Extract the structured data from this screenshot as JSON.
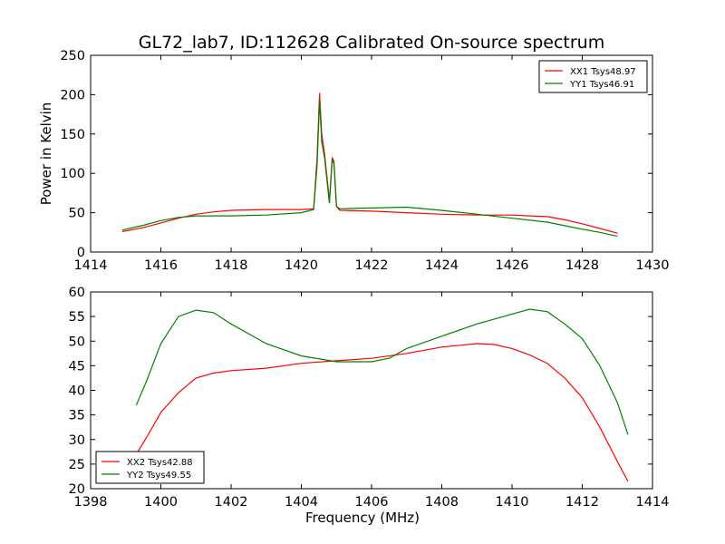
{
  "figure": {
    "title": "GL72_lab7, ID:112628 Calibrated On-source spectrum",
    "colors": {
      "XX": "#ff0000",
      "YY": "#008000",
      "frame": "#000000",
      "background": "#ffffff"
    }
  },
  "chart_data": [
    {
      "type": "line",
      "panel": "top",
      "xlabel": "",
      "ylabel": "Power in Kelvin",
      "xlim": [
        1414,
        1430
      ],
      "ylim": [
        0,
        250
      ],
      "xticks": [
        "1414",
        "1416",
        "1418",
        "1420",
        "1422",
        "1424",
        "1426",
        "1428",
        "1430"
      ],
      "yticks": [
        "0",
        "50",
        "100",
        "150",
        "200",
        "250"
      ],
      "legend_position": "top-right",
      "grid": false,
      "series": [
        {
          "name": "XX1 Tsys48.97",
          "color": "#ff0000",
          "points": [
            [
              1414.9,
              26
            ],
            [
              1415.5,
              31
            ],
            [
              1416,
              37
            ],
            [
              1416.5,
              43
            ],
            [
              1417,
              48
            ],
            [
              1417.5,
              51
            ],
            [
              1418,
              53
            ],
            [
              1419,
              54
            ],
            [
              1420,
              54
            ],
            [
              1420.35,
              55
            ],
            [
              1420.45,
              120
            ],
            [
              1420.52,
              202
            ],
            [
              1420.58,
              150
            ],
            [
              1420.66,
              125
            ],
            [
              1420.72,
              100
            ],
            [
              1420.8,
              65
            ],
            [
              1420.88,
              120
            ],
            [
              1420.93,
              115
            ],
            [
              1421.0,
              58
            ],
            [
              1421.1,
              53
            ],
            [
              1422,
              52
            ],
            [
              1423,
              50
            ],
            [
              1424,
              48
            ],
            [
              1425,
              47
            ],
            [
              1426,
              47
            ],
            [
              1426.5,
              46
            ],
            [
              1427,
              45
            ],
            [
              1427.5,
              41
            ],
            [
              1428,
              36
            ],
            [
              1428.5,
              30
            ],
            [
              1429,
              24
            ]
          ]
        },
        {
          "name": "YY1 Tsys46.91",
          "color": "#008000",
          "points": [
            [
              1414.9,
              28
            ],
            [
              1415.5,
              34
            ],
            [
              1416,
              40
            ],
            [
              1416.5,
              44
            ],
            [
              1417,
              46
            ],
            [
              1418,
              46
            ],
            [
              1419,
              47
            ],
            [
              1420,
              50
            ],
            [
              1420.35,
              54
            ],
            [
              1420.45,
              110
            ],
            [
              1420.52,
              193
            ],
            [
              1420.58,
              140
            ],
            [
              1420.66,
              120
            ],
            [
              1420.72,
              95
            ],
            [
              1420.8,
              62
            ],
            [
              1420.88,
              118
            ],
            [
              1420.93,
              112
            ],
            [
              1421.0,
              58
            ],
            [
              1421.1,
              55
            ],
            [
              1422,
              56
            ],
            [
              1423,
              57
            ],
            [
              1424,
              53
            ],
            [
              1425,
              48
            ],
            [
              1426,
              43
            ],
            [
              1427,
              38
            ],
            [
              1428,
              29
            ],
            [
              1428.5,
              25
            ],
            [
              1429,
              20
            ]
          ]
        }
      ]
    },
    {
      "type": "line",
      "panel": "bottom",
      "xlabel": "Frequency (MHz)",
      "ylabel": "",
      "xlim": [
        1398,
        1414
      ],
      "ylim": [
        20,
        60
      ],
      "xticks": [
        "1398",
        "1400",
        "1402",
        "1404",
        "1406",
        "1408",
        "1410",
        "1412",
        "1414"
      ],
      "yticks": [
        "20",
        "25",
        "30",
        "35",
        "40",
        "45",
        "50",
        "55",
        "60"
      ],
      "legend_position": "bottom-left",
      "grid": false,
      "series": [
        {
          "name": "XX2 Tsys42.88",
          "color": "#ff0000",
          "points": [
            [
              1399.3,
              27
            ],
            [
              1399.6,
              30.5
            ],
            [
              1400,
              35.5
            ],
            [
              1400.5,
              39.5
            ],
            [
              1401,
              42.5
            ],
            [
              1401.5,
              43.5
            ],
            [
              1402,
              44
            ],
            [
              1403,
              44.5
            ],
            [
              1404,
              45.5
            ],
            [
              1405,
              46
            ],
            [
              1406,
              46.5
            ],
            [
              1407,
              47.5
            ],
            [
              1408,
              48.8
            ],
            [
              1409,
              49.5
            ],
            [
              1409.5,
              49.3
            ],
            [
              1410,
              48.5
            ],
            [
              1410.5,
              47.2
            ],
            [
              1411,
              45.5
            ],
            [
              1411.5,
              42.5
            ],
            [
              1412,
              38.5
            ],
            [
              1412.5,
              32.5
            ],
            [
              1413,
              25.5
            ],
            [
              1413.3,
              21.5
            ]
          ]
        },
        {
          "name": "YY2 Tsys49.55",
          "color": "#008000",
          "points": [
            [
              1399.3,
              37
            ],
            [
              1399.6,
              42
            ],
            [
              1400,
              49.5
            ],
            [
              1400.5,
              55
            ],
            [
              1401,
              56.3
            ],
            [
              1401.5,
              55.8
            ],
            [
              1402,
              53.5
            ],
            [
              1402.5,
              51.5
            ],
            [
              1403,
              49.5
            ],
            [
              1404,
              47
            ],
            [
              1405,
              45.8
            ],
            [
              1406,
              45.8
            ],
            [
              1406.5,
              46.5
            ],
            [
              1407,
              48.5
            ],
            [
              1408,
              51
            ],
            [
              1409,
              53.5
            ],
            [
              1410,
              55.5
            ],
            [
              1410.5,
              56.5
            ],
            [
              1411,
              56
            ],
            [
              1411.5,
              53.5
            ],
            [
              1412,
              50.5
            ],
            [
              1412.5,
              45
            ],
            [
              1413,
              37.5
            ],
            [
              1413.3,
              31
            ]
          ]
        }
      ]
    }
  ]
}
